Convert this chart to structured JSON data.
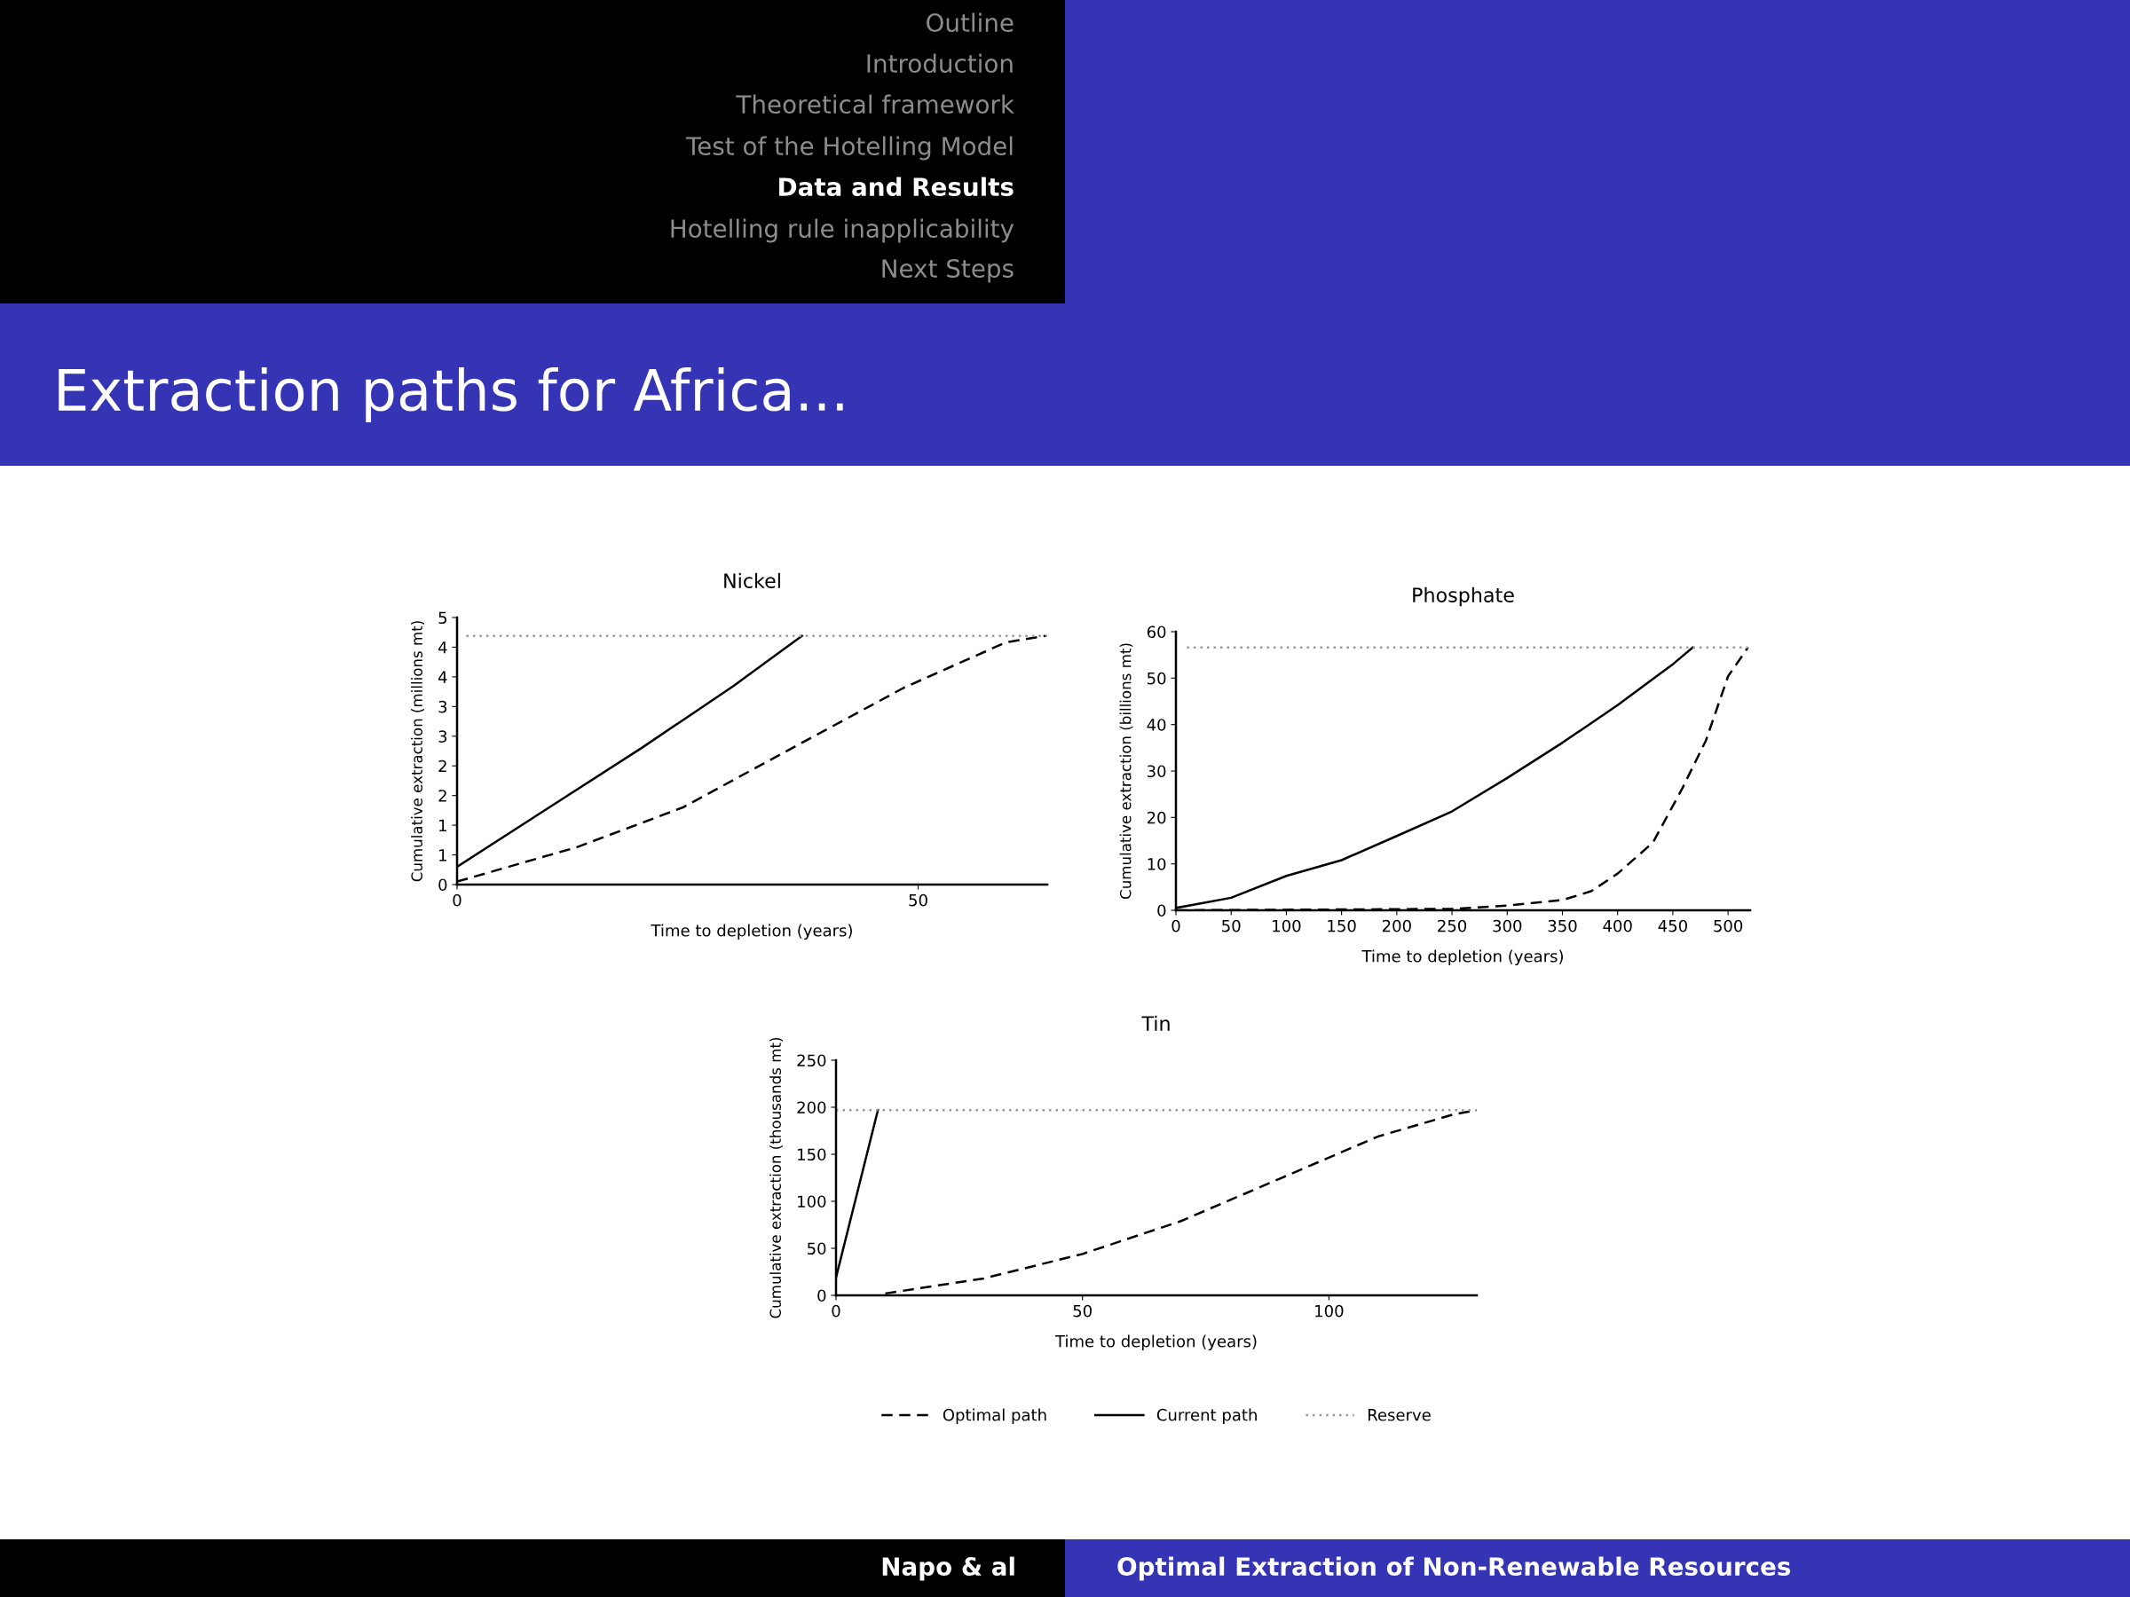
{
  "chart_data": [
    {
      "type": "line",
      "title": "Nickel",
      "xlabel": "Time to depletion (years)",
      "ylabel": "Cumulative extraction (millions mt)",
      "xlim": [
        0,
        64
      ],
      "xticks": [
        0,
        50
      ],
      "ylim": [
        0,
        4.5
      ],
      "yticks": [
        0,
        {
          "value": 0.5,
          "label": "1"
        },
        {
          "value": 1,
          "label": "1"
        },
        {
          "value": 1.5,
          "label": "2"
        },
        {
          "value": 2,
          "label": "2"
        },
        {
          "value": 2.5,
          "label": "3"
        },
        {
          "value": 3,
          "label": "3"
        },
        {
          "value": 3.5,
          "label": "4"
        },
        {
          "value": 4,
          "label": "4"
        },
        {
          "value": 4.5,
          "label": "5"
        }
      ],
      "grid": false,
      "series": [
        {
          "color": "#000000",
          "line_style": "dashed",
          "x": [
            0,
            13,
            24.5,
            37.4,
            48.5,
            59.5,
            63.8
          ],
          "values": [
            0.05,
            0.63,
            1.3,
            2.39,
            3.32,
            4.08,
            4.19
          ]
        },
        {
          "color": "#000000",
          "line_style": "solid",
          "x": [
            0,
            10,
            20,
            30,
            37.4
          ],
          "values": [
            0.3,
            1.3,
            2.3,
            3.35,
            4.19
          ]
        },
        {
          "color": "#999999",
          "line_style": "dotted",
          "x": [
            1,
            64
          ],
          "values": [
            4.19,
            4.19
          ]
        }
      ],
      "annotations": [
        "Outline",
        "Introduction",
        "Theoretical framework",
        "Test of the Hotelling Model",
        "Data and Results",
        "Hotelling rule inapplicability",
        "Next Steps",
        "Extraction paths for Africa...",
        "Napo & al",
        "Optimal Extraction of Non-Renewable Resources"
      ]
    },
    {
      "type": "line",
      "title": "Phosphate",
      "xlabel": "Time to depletion (years)",
      "ylabel": "Cumulative extraction (billions mt)",
      "xlim": [
        0,
        520
      ],
      "xticks": [
        0,
        50,
        100,
        150,
        200,
        250,
        300,
        350,
        400,
        450,
        500
      ],
      "ylim": [
        0,
        60
      ],
      "yticks": [
        0,
        10,
        20,
        30,
        40,
        50,
        60
      ],
      "grid": false,
      "series": [
        {
          "color": "#000000",
          "line_style": "dashed",
          "x": [
            0,
            250,
            300,
            350,
            376,
            400,
            432,
            458,
            480,
            500,
            518
          ],
          "values": [
            0,
            0.3,
            1,
            2.2,
            4.1,
            7.9,
            14.6,
            26,
            36.6,
            50.4,
            56.6
          ]
        },
        {
          "color": "#000000",
          "line_style": "solid",
          "x": [
            0,
            50,
            100,
            150,
            200,
            250,
            300,
            350,
            400,
            450,
            468
          ],
          "values": [
            0.5,
            2.7,
            7.4,
            10.8,
            16,
            21.3,
            28.5,
            36.1,
            44.2,
            53,
            56.6
          ]
        },
        {
          "color": "#999999",
          "line_style": "dotted",
          "x": [
            10,
            518
          ],
          "values": [
            56.6,
            56.6
          ]
        }
      ]
    },
    {
      "type": "line",
      "title": "Tin",
      "xlabel": "Time to depletion (years)",
      "ylabel": "Cumulative extraction (thousands mt)",
      "xlim": [
        0,
        130
      ],
      "xticks": [
        0,
        50,
        100
      ],
      "ylim": [
        0,
        250
      ],
      "yticks": [
        0,
        50,
        100,
        150,
        200,
        250
      ],
      "grid": false,
      "legend": "bottom",
      "series": [
        {
          "name": "Optimal path",
          "color": "#000000",
          "line_style": "dashed",
          "x": [
            10,
            30,
            50,
            70,
            90,
            110,
            125,
            130
          ],
          "values": [
            2,
            18,
            44,
            79,
            124,
            169,
            192,
            197
          ]
        },
        {
          "name": "Current path",
          "color": "#000000",
          "line_style": "solid",
          "x": [
            0,
            8.5
          ],
          "values": [
            19,
            197
          ]
        },
        {
          "name": "Reserve",
          "color": "#999999",
          "line_style": "dotted",
          "x": [
            0,
            130
          ],
          "values": [
            197,
            197
          ]
        }
      ]
    }
  ]
}
